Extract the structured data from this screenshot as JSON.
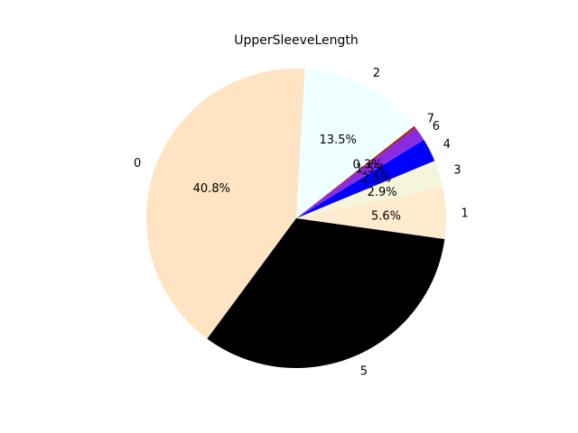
{
  "chart_data": {
    "type": "pie",
    "title": "UpperSleeveLength",
    "slices": [
      {
        "label": "1",
        "value": 5.6,
        "pct_label": "5.6%",
        "color": "#ffebcd"
      },
      {
        "label": "3",
        "value": 2.9,
        "pct_label": "2.9%",
        "color": "#f5f5dc"
      },
      {
        "label": "4",
        "value": 2.5,
        "pct_label": "2.5%",
        "color": "#0000ff"
      },
      {
        "label": "6",
        "value": 1.5,
        "pct_label": "1.5%",
        "color": "#8a2be2"
      },
      {
        "label": "7",
        "value": 0.3,
        "pct_label": "0.3%",
        "color": "#a52a2a"
      },
      {
        "label": "2",
        "value": 13.5,
        "pct_label": "13.5%",
        "color": "#f0ffff"
      },
      {
        "label": "0",
        "value": 40.8,
        "pct_label": "40.8%",
        "color": "#ffe4c4"
      },
      {
        "label": "5",
        "value": 32.9,
        "pct_label": "",
        "color": "#000000"
      }
    ],
    "start_angle_deg": -8,
    "direction": "counterclockwise"
  }
}
